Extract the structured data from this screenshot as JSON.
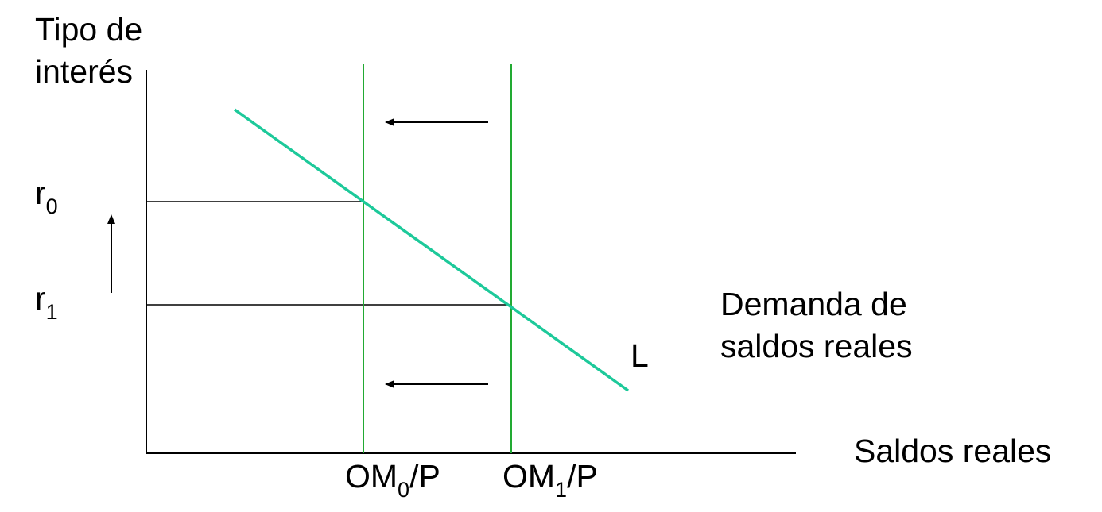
{
  "axes": {
    "y_label_line1": "Tipo de",
    "y_label_line2": "interés",
    "x_label": "Saldos reales"
  },
  "rates": {
    "r0": {
      "base": "r",
      "sub": "0"
    },
    "r1": {
      "base": "r",
      "sub": "1"
    }
  },
  "supply": {
    "om0": {
      "pre": "OM",
      "sub": "0",
      "post": "/P"
    },
    "om1": {
      "pre": "OM",
      "sub": "1",
      "post": "/P"
    }
  },
  "demand": {
    "curve_label": "L",
    "caption_line1": "Demanda de",
    "caption_line2": "saldos reales"
  },
  "colors": {
    "demand_curve": "#1dc99a",
    "supply_lines": "#22aa33",
    "axes": "#000000"
  }
}
